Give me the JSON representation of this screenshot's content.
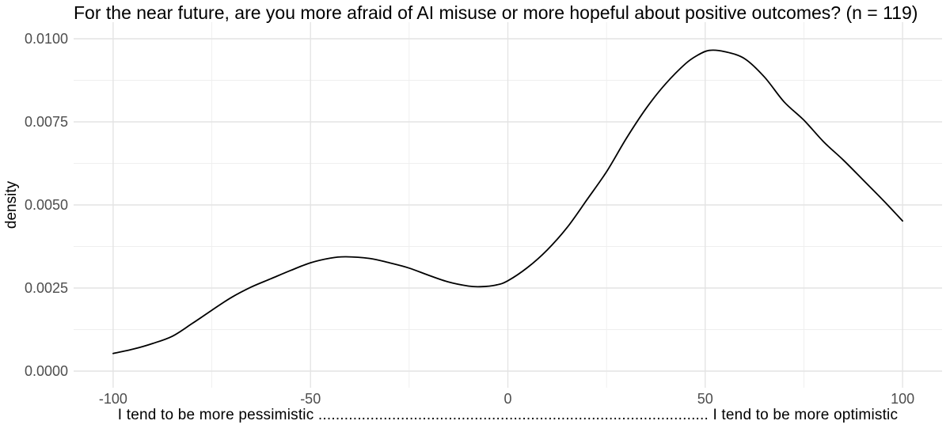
{
  "title": "For the near future, are you more afraid of AI misuse or more hopeful about positive outcomes? (n = 119)",
  "y_axis": {
    "label": "density",
    "tick_labels": [
      "0.0000",
      "0.0025",
      "0.0050",
      "0.0075",
      "0.0100"
    ]
  },
  "x_axis": {
    "title": "I tend to be more pessimistic  ..........................................................................................  I tend to be more optimistic",
    "tick_labels": [
      "-100",
      "-50",
      "0",
      "50",
      "100"
    ]
  },
  "colors": {
    "background": "#FFFFFF",
    "curve": "#000000",
    "grid_major": "#E4E4E4",
    "grid_minor": "#EFEFEF",
    "tick_text": "#4D4D4D",
    "title_text": "#000000"
  },
  "chart_data": {
    "type": "line",
    "subtype": "density-curve",
    "title": "For the near future, are you more afraid of AI misuse or more hopeful about positive outcomes? (n = 119)",
    "sample_size": 119,
    "xlabel": "I tend to be more pessimistic .......... I tend to be more optimistic",
    "ylabel": "density",
    "xlim": [
      -110,
      110
    ],
    "ylim": [
      -0.0005,
      0.0105
    ],
    "x_ticks": [
      -100,
      -50,
      0,
      50,
      100
    ],
    "x_minor_ticks": [
      -75,
      -25,
      25,
      75
    ],
    "y_ticks": [
      0,
      0.0025,
      0.005,
      0.0075,
      0.01
    ],
    "y_minor_ticks": [
      0.00125,
      0.00375,
      0.00625,
      0.00875
    ],
    "grid": true,
    "legend": false,
    "line_color": "#000000",
    "x": [
      -100,
      -95,
      -90,
      -85,
      -80,
      -75,
      -70,
      -65,
      -60,
      -55,
      -50,
      -45,
      -41,
      -35,
      -30,
      -25,
      -20,
      -15,
      -10,
      -7,
      -3,
      0,
      5,
      10,
      15,
      20,
      25,
      30,
      35,
      40,
      45,
      48,
      51,
      55,
      60,
      65,
      70,
      75,
      80,
      85,
      90,
      95,
      100
    ],
    "density": [
      0.00053,
      0.00066,
      0.00083,
      0.00105,
      0.00143,
      0.00183,
      0.00222,
      0.00253,
      0.00278,
      0.00303,
      0.00326,
      0.0034,
      0.00344,
      0.00339,
      0.00326,
      0.0031,
      0.00288,
      0.00268,
      0.00256,
      0.00254,
      0.00259,
      0.00272,
      0.00312,
      0.00365,
      0.00432,
      0.00515,
      0.006,
      0.007,
      0.0079,
      0.00865,
      0.00925,
      0.0095,
      0.00965,
      0.00961,
      0.0094,
      0.00885,
      0.0081,
      0.00755,
      0.0069,
      0.00635,
      0.00575,
      0.00515,
      0.00452
    ],
    "features": {
      "left_bump_peak": {
        "x": -41,
        "density": 0.0034
      },
      "local_min": {
        "x": -7,
        "density": 0.0025
      },
      "main_peak": {
        "x": 51,
        "density": 0.0096
      },
      "value_at_left_edge": {
        "x": -100,
        "density": 0.0005
      },
      "value_at_right_edge": {
        "x": 100,
        "density": 0.0045
      }
    }
  }
}
